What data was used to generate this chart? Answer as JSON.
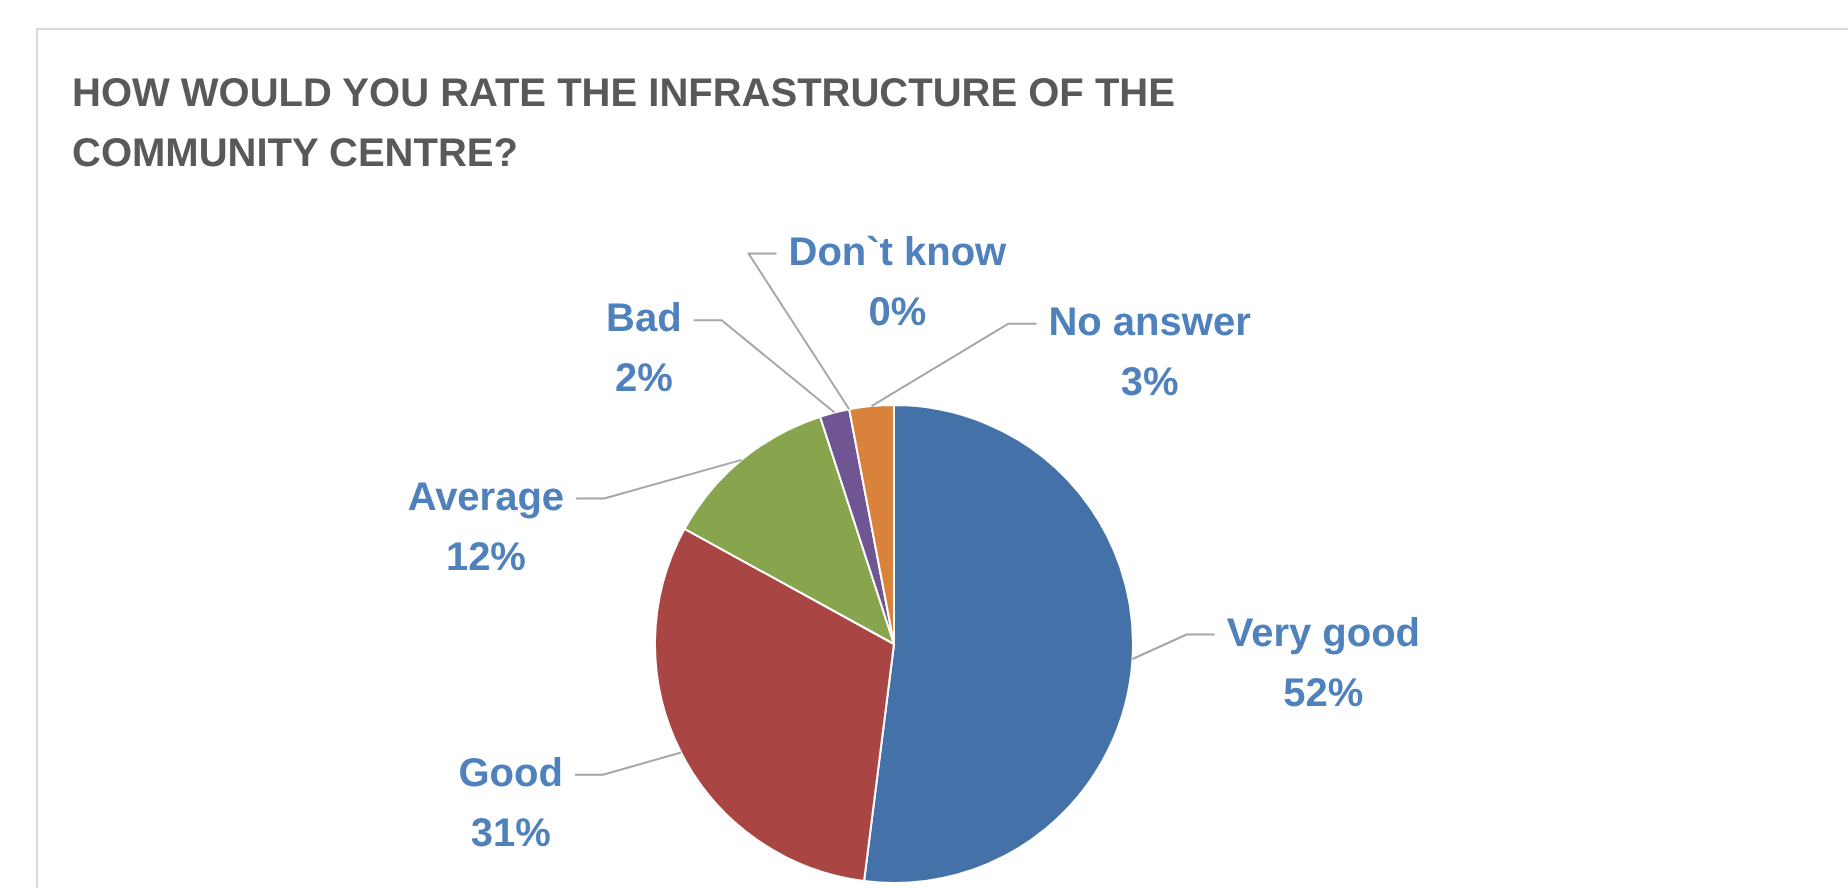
{
  "chart_data": {
    "type": "pie",
    "title": "HOW WOULD YOU RATE THE INFRASTRUCTURE OF THE COMMUNITY CENTRE?",
    "categories": [
      "Very good",
      "Good",
      "Average",
      "Bad",
      "Don`t know",
      "No answer"
    ],
    "values": [
      52,
      31,
      12,
      2,
      0,
      3
    ],
    "value_labels": [
      "52%",
      "31%",
      "12%",
      "2%",
      "0%",
      "3%"
    ],
    "colors": [
      "#4472a8",
      "#a94643",
      "#88a44c",
      "#6f5592",
      "#3d96ae",
      "#d9823b"
    ],
    "legend": false
  }
}
